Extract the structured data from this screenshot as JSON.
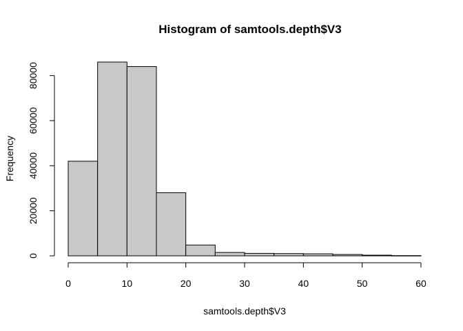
{
  "chart_data": {
    "type": "bar",
    "title": "Histogram of samtools.depth$V3",
    "xlabel": "samtools.depth$V3",
    "ylabel": "Frequency",
    "bar_color": "#c8c8c8",
    "bins": [
      {
        "x0": 0,
        "x1": 5,
        "count": 42000
      },
      {
        "x0": 5,
        "x1": 10,
        "count": 86000
      },
      {
        "x0": 10,
        "x1": 15,
        "count": 84000
      },
      {
        "x0": 15,
        "x1": 20,
        "count": 28000
      },
      {
        "x0": 20,
        "x1": 25,
        "count": 4800
      },
      {
        "x0": 25,
        "x1": 30,
        "count": 1500
      },
      {
        "x0": 30,
        "x1": 35,
        "count": 1100
      },
      {
        "x0": 35,
        "x1": 40,
        "count": 1000
      },
      {
        "x0": 40,
        "x1": 45,
        "count": 900
      },
      {
        "x0": 45,
        "x1": 50,
        "count": 600
      },
      {
        "x0": 50,
        "x1": 55,
        "count": 300
      },
      {
        "x0": 55,
        "x1": 60,
        "count": 100
      }
    ],
    "xlim": [
      0,
      60
    ],
    "ylim": [
      0,
      86000
    ],
    "xticks": [
      0,
      10,
      20,
      30,
      40,
      50,
      60
    ],
    "yticks": [
      0,
      20000,
      40000,
      60000,
      80000
    ],
    "grid": false,
    "legend": "none"
  }
}
